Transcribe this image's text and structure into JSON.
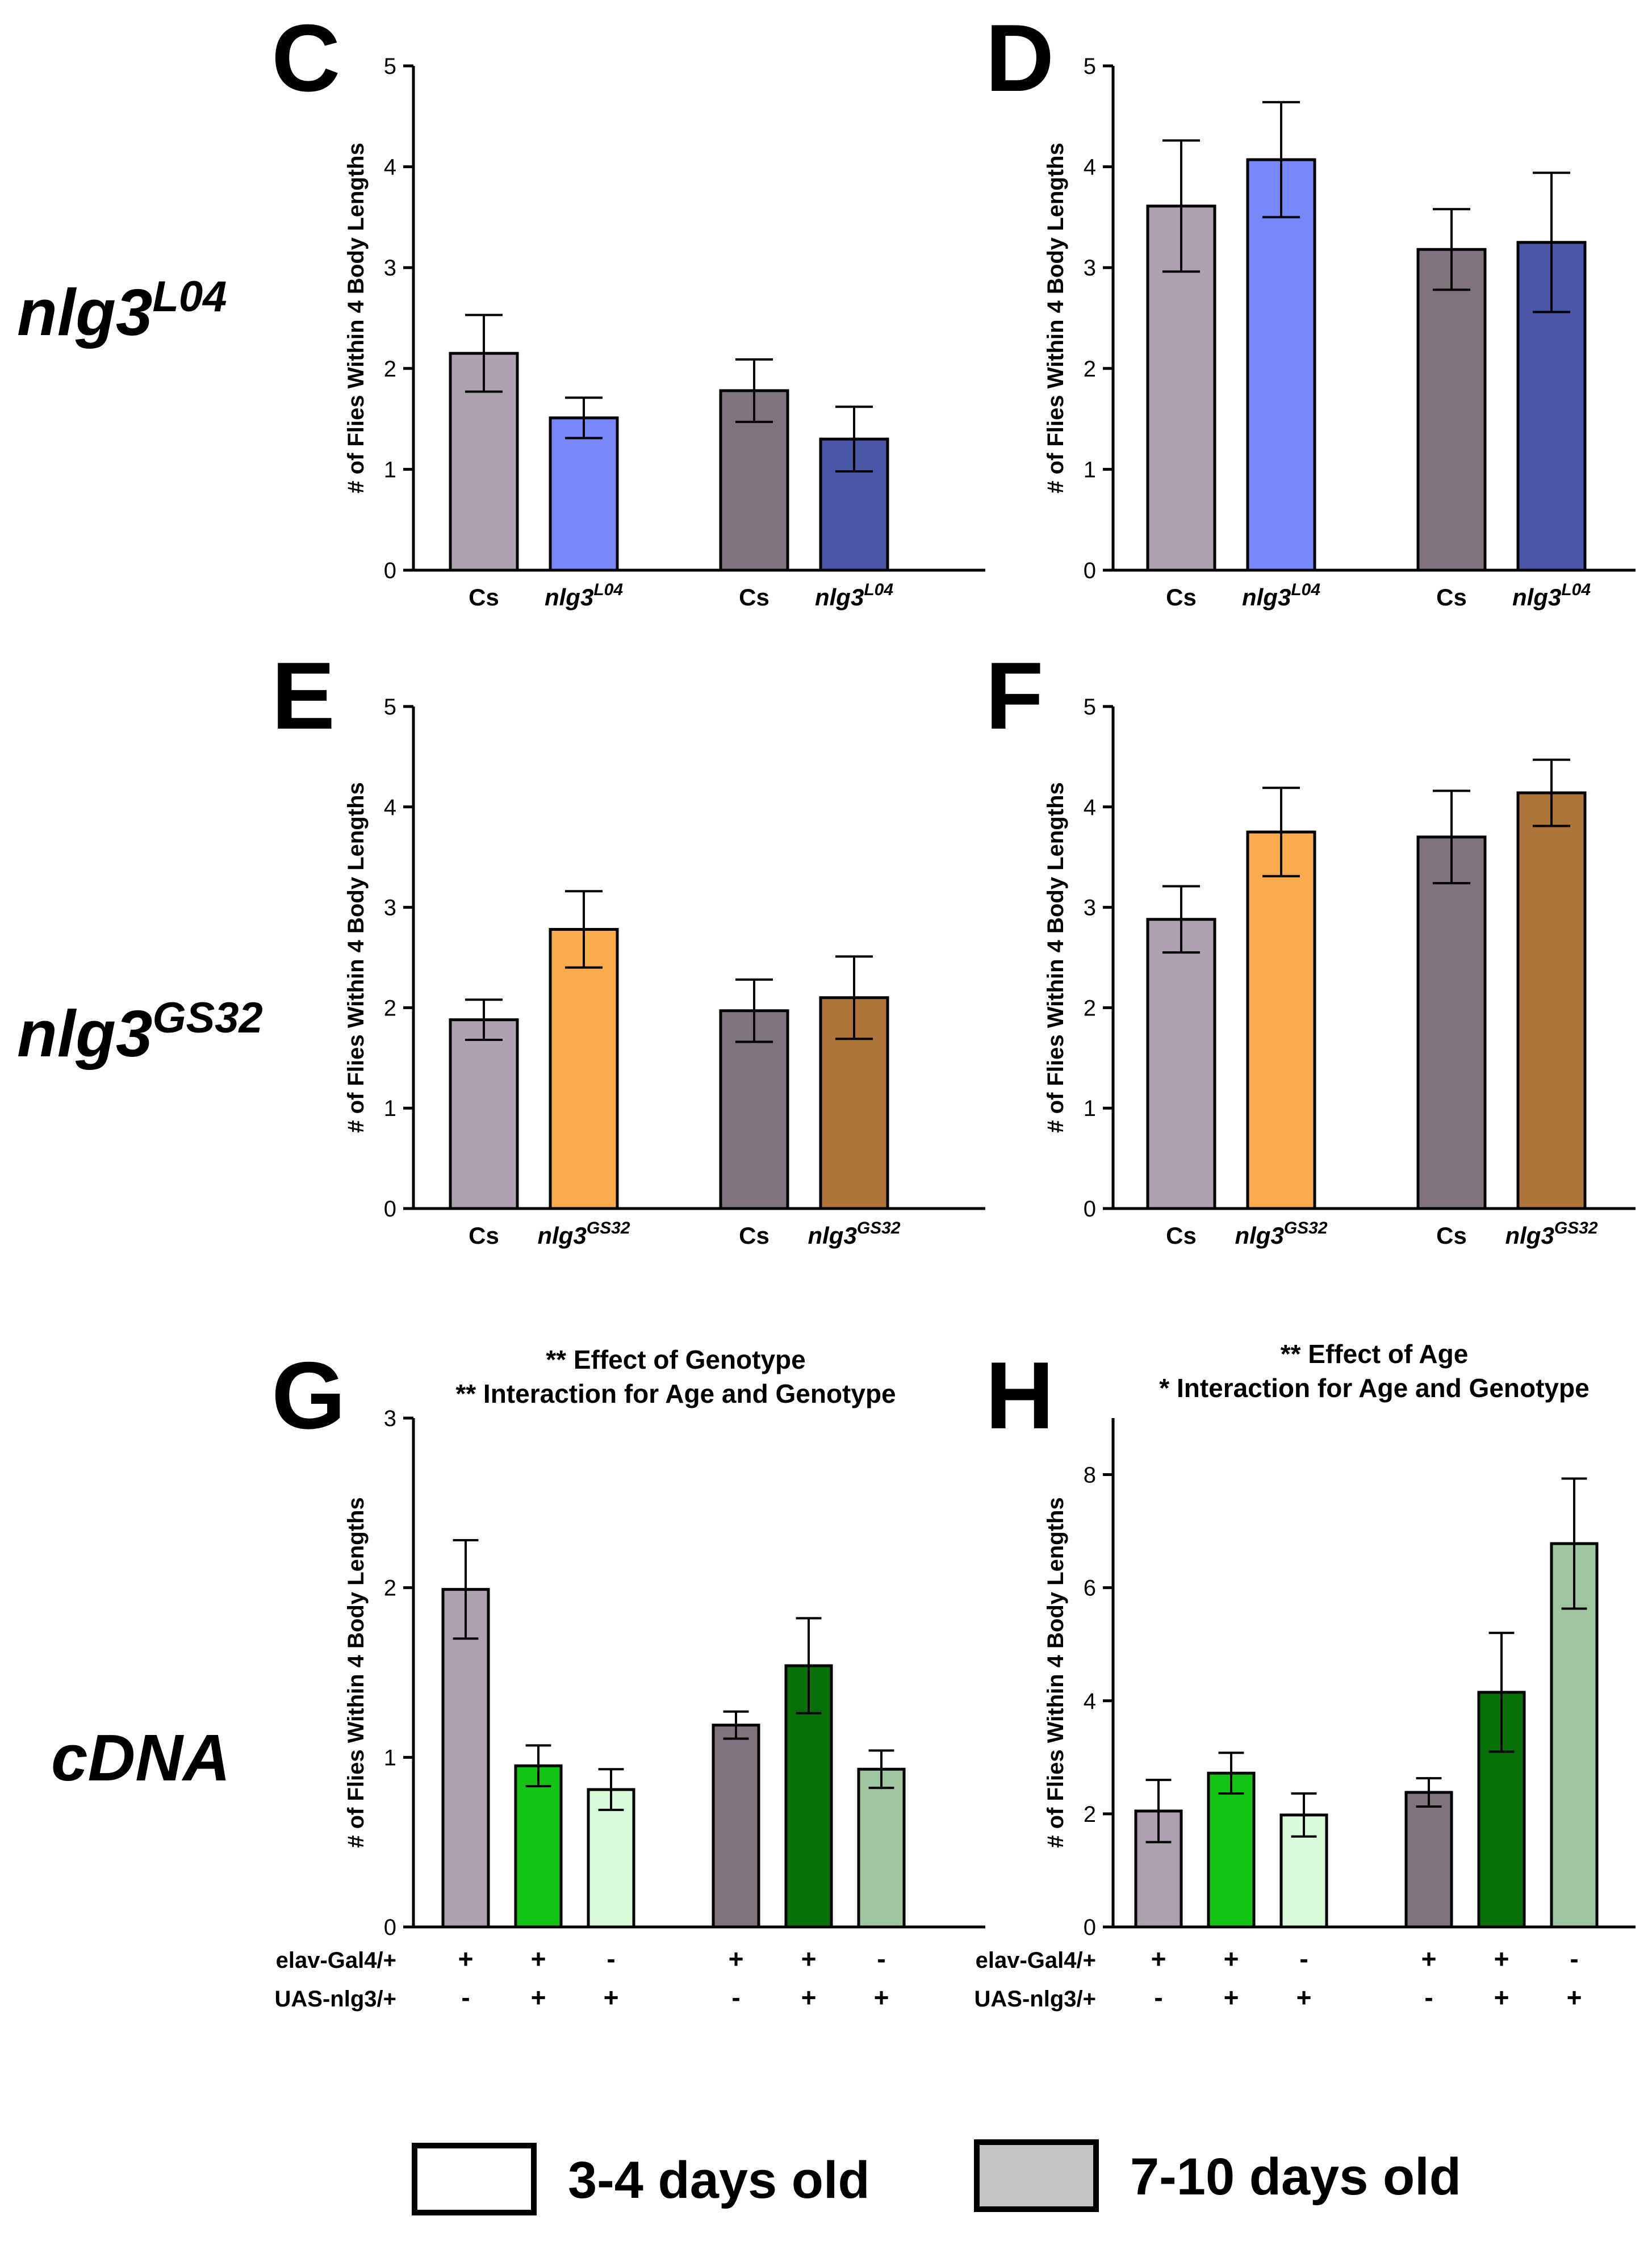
{
  "colors": {
    "cs_young": "#aea2b0",
    "cs_old": "#7f737d",
    "l04_young": "#7888f8",
    "l04_old": "#4a57a8",
    "gs32_young": "#fbab4d",
    "gs32_old": "#ac7438",
    "g1_young": "#14c414",
    "g2_young": "#d8fbd9",
    "g1_old": "#087008",
    "g2_old": "#a0c5a1",
    "legend_old": "#c4c4c4"
  },
  "row_labels": [
    {
      "base": "nlg3",
      "sup": "L04"
    },
    {
      "base": "nlg3",
      "sup": "GS32"
    },
    {
      "base": "cDNA",
      "sup": ""
    }
  ],
  "geno_labels": {
    "row1": "elav-Gal4/+",
    "row2": "UAS-nlg3/+",
    "marks1": [
      "+",
      "+",
      "-",
      "+",
      "+",
      "-"
    ],
    "marks2": [
      "-",
      "+",
      "+",
      "-",
      "+",
      "+"
    ]
  },
  "legend": {
    "young": "3-4 days old",
    "old": "7-10 days old"
  },
  "chart_data": [
    {
      "panel": "C",
      "type": "bar",
      "ylabel": "# of Flies Within 4 Body Lengths",
      "ylim": [
        0,
        5
      ],
      "yticks": [
        0,
        1,
        2,
        3,
        4,
        5
      ],
      "title": [],
      "bars": [
        {
          "label": "Cs",
          "value": 2.15,
          "err": 0.38,
          "color": "cs_young",
          "group": 0
        },
        {
          "label": "nlg3",
          "sup": "L04",
          "value": 1.51,
          "err": 0.2,
          "color": "l04_young",
          "group": 0
        },
        {
          "label": "Cs",
          "value": 1.78,
          "err": 0.31,
          "color": "cs_old",
          "group": 1
        },
        {
          "label": "nlg3",
          "sup": "L04",
          "value": 1.3,
          "err": 0.32,
          "color": "l04_old",
          "group": 1
        }
      ]
    },
    {
      "panel": "D",
      "type": "bar",
      "ylabel": "# of Flies Within 4 Body Lengths",
      "ylim": [
        0,
        5
      ],
      "yticks": [
        0,
        1,
        2,
        3,
        4,
        5
      ],
      "title": [],
      "bars": [
        {
          "label": "Cs",
          "value": 3.61,
          "err": 0.65,
          "color": "cs_young",
          "group": 0
        },
        {
          "label": "nlg3",
          "sup": "L04",
          "value": 4.07,
          "err": 0.57,
          "color": "l04_young",
          "group": 0
        },
        {
          "label": "Cs",
          "value": 3.18,
          "err": 0.4,
          "color": "cs_old",
          "group": 1
        },
        {
          "label": "nlg3",
          "sup": "L04",
          "value": 3.25,
          "err": 0.69,
          "color": "l04_old",
          "group": 1
        }
      ]
    },
    {
      "panel": "E",
      "type": "bar",
      "ylabel": "# of Flies Within 4 Body Lengths",
      "ylim": [
        0,
        5
      ],
      "yticks": [
        0,
        1,
        2,
        3,
        4,
        5
      ],
      "title": [],
      "bars": [
        {
          "label": "Cs",
          "value": 1.88,
          "err": 0.2,
          "color": "cs_young",
          "group": 0
        },
        {
          "label": "nlg3",
          "sup": "GS32",
          "value": 2.78,
          "err": 0.38,
          "color": "gs32_young",
          "group": 0
        },
        {
          "label": "Cs",
          "value": 1.97,
          "err": 0.31,
          "color": "cs_old",
          "group": 1
        },
        {
          "label": "nlg3",
          "sup": "GS32",
          "value": 2.1,
          "err": 0.41,
          "color": "gs32_old",
          "group": 1
        }
      ]
    },
    {
      "panel": "F",
      "type": "bar",
      "ylabel": "# of Flies Within 4 Body Lengths",
      "ylim": [
        0,
        5
      ],
      "yticks": [
        0,
        1,
        2,
        3,
        4,
        5
      ],
      "title": [],
      "bars": [
        {
          "label": "Cs",
          "value": 2.88,
          "err": 0.33,
          "color": "cs_young",
          "group": 0
        },
        {
          "label": "nlg3",
          "sup": "GS32",
          "value": 3.75,
          "err": 0.44,
          "color": "gs32_young",
          "group": 0
        },
        {
          "label": "Cs",
          "value": 3.7,
          "err": 0.46,
          "color": "cs_old",
          "group": 1
        },
        {
          "label": "nlg3",
          "sup": "GS32",
          "value": 4.14,
          "err": 0.33,
          "color": "gs32_old",
          "group": 1
        }
      ]
    },
    {
      "panel": "G",
      "type": "bar",
      "ylabel": "# of Flies Within 4 Body Lengths",
      "ylim": [
        0,
        3
      ],
      "yticks": [
        0,
        1,
        2,
        3
      ],
      "title": [
        "**  Effect of Genotype",
        "** Interaction for Age and Genotype"
      ],
      "bars": [
        {
          "value": 1.99,
          "err": 0.29,
          "color": "cs_young",
          "group": 0
        },
        {
          "value": 0.95,
          "err": 0.12,
          "color": "g1_young",
          "group": 0
        },
        {
          "value": 0.81,
          "err": 0.12,
          "color": "g2_young",
          "group": 0
        },
        {
          "value": 1.19,
          "err": 0.08,
          "color": "cs_old",
          "group": 1
        },
        {
          "value": 1.54,
          "err": 0.28,
          "color": "g1_old",
          "group": 1
        },
        {
          "value": 0.93,
          "err": 0.11,
          "color": "g2_old",
          "group": 1
        }
      ]
    },
    {
      "panel": "H",
      "type": "bar",
      "ylabel": "# of Flies Within 4 Body Lengths",
      "ylim": [
        0,
        9
      ],
      "yticks": [
        0,
        2,
        4,
        6,
        8
      ],
      "title": [
        "**  Effect of Age",
        "* Interaction for Age and Genotype"
      ],
      "bars": [
        {
          "value": 2.05,
          "err": 0.55,
          "color": "cs_young",
          "group": 0
        },
        {
          "value": 2.72,
          "err": 0.36,
          "color": "g1_young",
          "group": 0
        },
        {
          "value": 1.98,
          "err": 0.38,
          "color": "g2_young",
          "group": 0
        },
        {
          "value": 2.38,
          "err": 0.25,
          "color": "cs_old",
          "group": 1
        },
        {
          "value": 4.15,
          "err": 1.05,
          "color": "g1_old",
          "group": 1
        },
        {
          "value": 6.78,
          "err": 1.15,
          "color": "g2_old",
          "group": 1
        }
      ]
    }
  ]
}
